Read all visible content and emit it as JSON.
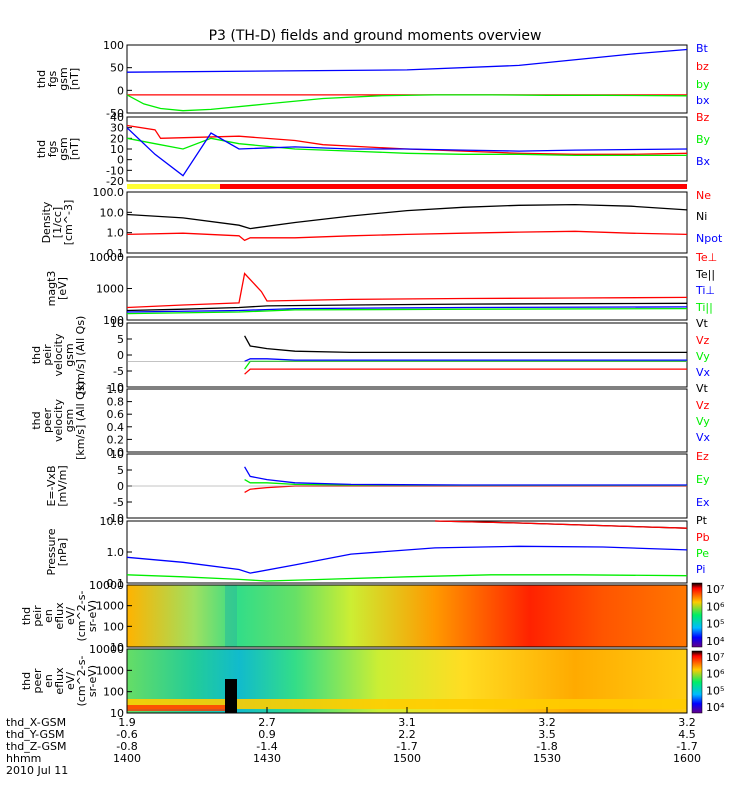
{
  "title": "P3 (TH-D) fields and ground moments overview",
  "x_ticks": [
    "1400",
    "1430",
    "1500",
    "1530",
    "1600"
  ],
  "orbit": {
    "labels": [
      "thd_X-GSM",
      "thd_Y-GSM",
      "thd_Z-GSM",
      "hhmm",
      "2010 Jul 11"
    ],
    "rows": [
      [
        "1.9",
        "2.7",
        "3.1",
        "3.2",
        "3.2"
      ],
      [
        "-0.6",
        "0.9",
        "2.2",
        "3.5",
        "4.5"
      ],
      [
        "-0.8",
        "-1.4",
        "-1.7",
        "-1.8",
        "-1.7"
      ],
      [
        "1400",
        "1430",
        "1500",
        "1530",
        "1600"
      ]
    ]
  },
  "colorbar_top": [
    "10⁷",
    "10⁶",
    "10⁵",
    "10⁴"
  ],
  "colorbar_bottom": [
    "10⁷",
    "10⁶",
    "10⁵",
    "10⁴"
  ],
  "chart_data": [
    {
      "type": "line",
      "id": "fgs_gsm",
      "ylabel": [
        "thd",
        "fgs",
        "gsm",
        "[nT]"
      ],
      "ylim": [
        -50,
        100
      ],
      "yticks": [
        "100",
        "50",
        "0",
        "-50"
      ],
      "log": false,
      "series": [
        {
          "name": "Bt",
          "color": "#0000ff",
          "x": [
            0.0,
            0.5,
            0.7,
            0.9,
            1.0
          ],
          "y": [
            40,
            45,
            55,
            80,
            90
          ]
        },
        {
          "name": "bz",
          "color": "#ff0000",
          "x": [
            0.0,
            1.0
          ],
          "y": [
            -10,
            -10
          ]
        },
        {
          "name": "by",
          "color": "#00ee00",
          "x": [
            0.0,
            0.03,
            0.06,
            0.1,
            0.15,
            0.25,
            0.35,
            0.45,
            0.55,
            0.65,
            0.75,
            0.85,
            1.0
          ],
          "y": [
            -10,
            -30,
            -40,
            -45,
            -42,
            -30,
            -18,
            -12,
            -10,
            -10,
            -11,
            -11,
            -12
          ]
        },
        {
          "name": "bx",
          "color": "#0000ff",
          "x": [],
          "y": []
        }
      ]
    },
    {
      "type": "line",
      "id": "fgs_dsl",
      "ylabel": [
        "thd",
        "fgs",
        "gsm",
        "[nT]"
      ],
      "ylim": [
        -20,
        40
      ],
      "yticks": [
        "40",
        "30",
        "20",
        "10",
        "0",
        "-10",
        "-20"
      ],
      "log": false,
      "series": [
        {
          "name": "Bz",
          "color": "#ff0000",
          "x": [
            0.0,
            0.05,
            0.06,
            0.2,
            0.3,
            0.35,
            0.5,
            0.6,
            0.7,
            0.8,
            0.9,
            1.0
          ],
          "y": [
            32,
            28,
            20,
            22,
            18,
            14,
            10,
            8,
            6,
            5,
            5,
            6
          ]
        },
        {
          "name": "By",
          "color": "#00ee00",
          "x": [
            0.0,
            0.05,
            0.1,
            0.15,
            0.2,
            0.3,
            0.4,
            0.5,
            0.6,
            0.7,
            0.8,
            1.0
          ],
          "y": [
            20,
            15,
            10,
            20,
            15,
            10,
            8,
            6,
            5,
            5,
            4,
            4
          ]
        },
        {
          "name": "Bx",
          "color": "#0000ff",
          "x": [
            0.0,
            0.05,
            0.1,
            0.15,
            0.2,
            0.3,
            0.4,
            0.5,
            0.6,
            0.7,
            0.8,
            1.0
          ],
          "y": [
            30,
            5,
            -15,
            25,
            10,
            12,
            10,
            10,
            9,
            8,
            9,
            10
          ]
        }
      ]
    },
    {
      "type": "line",
      "id": "density",
      "ylabel": [
        "Density",
        "[1/cc]",
        "[cm^-3]"
      ],
      "log": true,
      "ylim": [
        0.03,
        300
      ],
      "yticks": [
        "100.0",
        "10.0",
        "1.0",
        "0.1"
      ],
      "series": [
        {
          "name": "Ne",
          "color": "#ff0000",
          "x": [
            0.0,
            0.1,
            0.2,
            0.21,
            0.22,
            0.3,
            0.4,
            0.5,
            0.6,
            0.7,
            0.8,
            0.9,
            1.0
          ],
          "y": [
            0.5,
            0.6,
            0.4,
            0.2,
            0.3,
            0.3,
            0.4,
            0.5,
            0.6,
            0.7,
            0.8,
            0.6,
            0.5
          ]
        },
        {
          "name": "Ni",
          "color": "#000000",
          "x": [
            0.0,
            0.1,
            0.2,
            0.22,
            0.3,
            0.4,
            0.5,
            0.6,
            0.7,
            0.8,
            0.9,
            1.0
          ],
          "y": [
            10,
            6,
            2,
            1.2,
            3,
            8,
            18,
            30,
            40,
            45,
            35,
            20
          ]
        },
        {
          "name": "Npot",
          "color": "#0000ff",
          "x": [],
          "y": []
        }
      ]
    },
    {
      "type": "line",
      "id": "temp",
      "ylabel": [
        "magt3",
        "[eV]"
      ],
      "log": true,
      "ylim": [
        100,
        10000
      ],
      "yticks": [
        "10000",
        "1000",
        "100"
      ],
      "series": [
        {
          "name": "Te⊥",
          "color": "#ff0000",
          "x": [
            0.0,
            0.1,
            0.2,
            0.21,
            0.24,
            0.25,
            0.4,
            0.6,
            0.8,
            1.0
          ],
          "y": [
            250,
            300,
            350,
            3000,
            800,
            400,
            450,
            480,
            500,
            520
          ]
        },
        {
          "name": "Te||",
          "color": "#000000",
          "x": [
            0.0,
            0.1,
            0.2,
            0.25,
            0.4,
            0.6,
            0.8,
            1.0
          ],
          "y": [
            200,
            220,
            250,
            280,
            300,
            320,
            330,
            340
          ]
        },
        {
          "name": "Ti⊥",
          "color": "#0000ff",
          "x": [
            0.0,
            0.2,
            0.3,
            0.6,
            1.0
          ],
          "y": [
            180,
            200,
            230,
            250,
            260
          ]
        },
        {
          "name": "Ti||",
          "color": "#00ee00",
          "x": [
            0.0,
            0.2,
            0.3,
            0.6,
            1.0
          ],
          "y": [
            160,
            180,
            210,
            220,
            230
          ]
        }
      ]
    },
    {
      "type": "line",
      "id": "peir_vel",
      "ylabel": [
        "thd",
        "peir",
        "velocity",
        "gsm",
        "[km/s] (All Qs)"
      ],
      "ylim": [
        -10,
        15
      ],
      "yticks": [
        "10",
        "5",
        "0",
        "-5",
        "-10"
      ],
      "log": false,
      "series": [
        {
          "name": "Vt",
          "color": "#000000",
          "x": [
            0.21,
            0.22,
            0.25,
            0.3,
            0.4,
            0.6,
            0.8,
            1.0
          ],
          "y": [
            10,
            6,
            5,
            4,
            3.5,
            3.5,
            3.5,
            3.5
          ]
        },
        {
          "name": "Vz",
          "color": "#ff0000",
          "x": [
            0.21,
            0.22,
            0.25,
            0.3,
            0.4,
            0.6,
            0.8,
            1.0
          ],
          "y": [
            -5,
            -3,
            -3,
            -3,
            -3,
            -3,
            -3,
            -3
          ]
        },
        {
          "name": "Vy",
          "color": "#00ee00",
          "x": [
            0.21,
            0.22,
            0.25,
            0.3,
            0.4,
            0.6,
            0.8,
            1.0
          ],
          "y": [
            -3,
            0,
            0,
            0,
            0,
            0,
            0,
            0
          ]
        },
        {
          "name": "Vx",
          "color": "#0000ff",
          "x": [
            0.21,
            0.22,
            0.25,
            0.3,
            0.4,
            0.6,
            0.8,
            1.0
          ],
          "y": [
            0,
            1,
            1,
            0.5,
            0.5,
            0.5,
            0.5,
            0.5
          ]
        }
      ]
    },
    {
      "type": "line",
      "id": "peer_vel",
      "ylabel": [
        "thd",
        "peer",
        "velocity",
        "gsm",
        "[km/s] (All Qs)"
      ],
      "ylim": [
        0,
        1
      ],
      "yticks": [
        "1.0",
        "0.8",
        "0.6",
        "0.4",
        "0.2",
        "0.0"
      ],
      "log": false,
      "series": [
        {
          "name": "Vt",
          "color": "#000000",
          "x": [],
          "y": []
        },
        {
          "name": "Vz",
          "color": "#ff0000",
          "x": [],
          "y": []
        },
        {
          "name": "Vy",
          "color": "#00ee00",
          "x": [],
          "y": []
        },
        {
          "name": "Vx",
          "color": "#0000ff",
          "x": [],
          "y": []
        }
      ]
    },
    {
      "type": "line",
      "id": "efield",
      "ylabel": [
        "E=-VxB",
        "[mV/m]"
      ],
      "ylim": [
        -10,
        10
      ],
      "yticks": [
        "10",
        "5",
        "0",
        "-5",
        "-10"
      ],
      "log": false,
      "series": [
        {
          "name": "Ez",
          "color": "#ff0000",
          "x": [
            0.21,
            0.22,
            0.25,
            0.3,
            0.4,
            0.6,
            1.0
          ],
          "y": [
            -2,
            -1,
            -0.5,
            0,
            0,
            0,
            0
          ]
        },
        {
          "name": "Ey",
          "color": "#00ee00",
          "x": [
            0.21,
            0.22,
            0.25,
            0.3,
            0.4,
            0.6,
            1.0
          ],
          "y": [
            2,
            1,
            1,
            0.5,
            0.3,
            0.2,
            0.2
          ]
        },
        {
          "name": "Ex",
          "color": "#0000ff",
          "x": [
            0.21,
            0.22,
            0.25,
            0.3,
            0.4,
            0.6,
            1.0
          ],
          "y": [
            6,
            3,
            2,
            1,
            0.5,
            0.3,
            0.3
          ]
        }
      ]
    },
    {
      "type": "line",
      "id": "pressure",
      "ylabel": [
        "Pressure",
        "[nPa]"
      ],
      "log": true,
      "ylim": [
        0.02,
        20
      ],
      "yticks": [
        "10.0",
        "1.0",
        "0.1"
      ],
      "series": [
        {
          "name": "Pt",
          "color": "#000000",
          "x": [
            0.55,
            0.7,
            0.85,
            1.0
          ],
          "y": [
            20,
            16,
            12,
            9
          ]
        },
        {
          "name": "Pb",
          "color": "#ff0000",
          "x": [
            0.55,
            0.7,
            0.85,
            1.0
          ],
          "y": [
            20,
            16,
            12,
            9
          ]
        },
        {
          "name": "Pe",
          "color": "#00ee00",
          "x": [
            0.0,
            0.1,
            0.2,
            0.25,
            0.35,
            0.5,
            0.65,
            0.8,
            1.0
          ],
          "y": [
            0.05,
            0.04,
            0.03,
            0.025,
            0.03,
            0.04,
            0.05,
            0.05,
            0.045
          ]
        },
        {
          "name": "Pi",
          "color": "#0000ff",
          "x": [
            0.0,
            0.1,
            0.2,
            0.22,
            0.3,
            0.4,
            0.55,
            0.7,
            0.85,
            1.0
          ],
          "y": [
            0.35,
            0.2,
            0.09,
            0.06,
            0.15,
            0.5,
            1.0,
            1.2,
            1.1,
            0.8
          ]
        }
      ]
    },
    {
      "type": "heatmap",
      "id": "peir_spec",
      "ylabel": [
        "thd",
        "peir",
        "en",
        "eflux",
        "eV/",
        "(cm^2-s-",
        "sr-eV)"
      ],
      "yticks": [
        "10000",
        "1000",
        "100",
        "10"
      ],
      "log": true
    },
    {
      "type": "heatmap",
      "id": "peer_spec",
      "ylabel": [
        "thd",
        "peer",
        "en",
        "eflux",
        "eV/",
        "(cm^2-s-",
        "sr-eV)"
      ],
      "yticks": [
        "10000",
        "1000",
        "100",
        "10"
      ],
      "log": true
    }
  ]
}
